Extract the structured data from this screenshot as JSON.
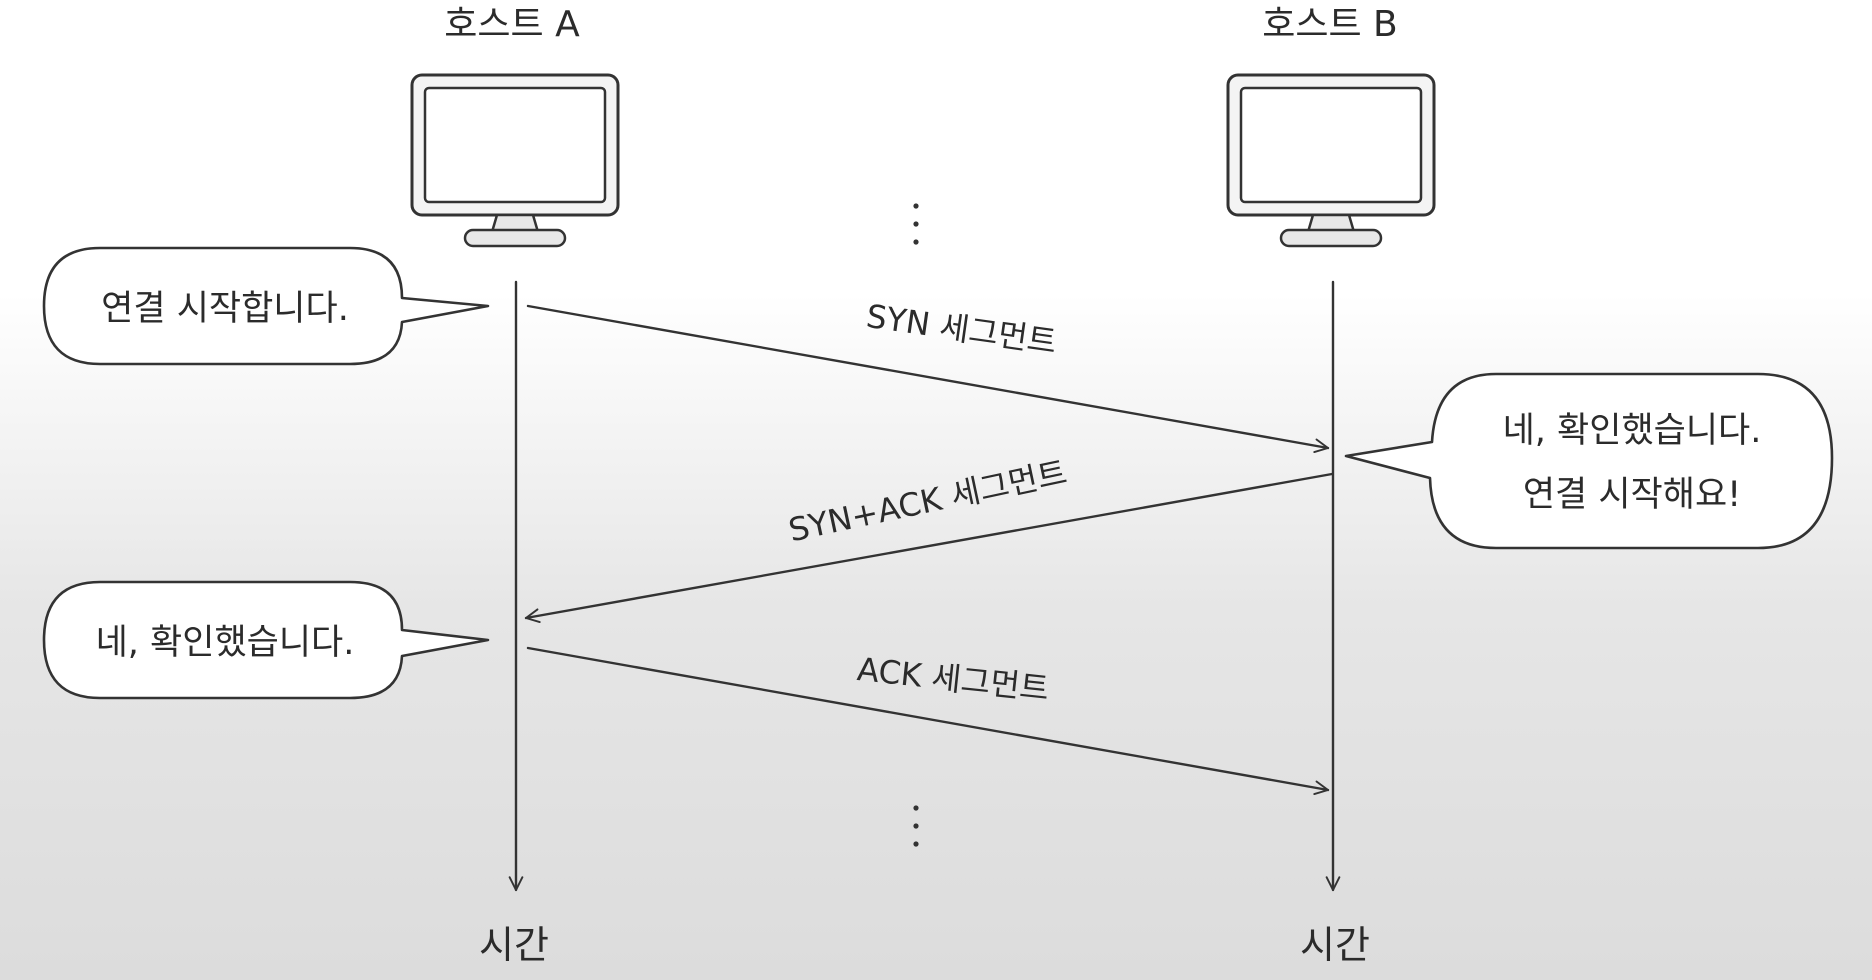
{
  "hosts": {
    "a": {
      "label": "호스트 A",
      "time_label": "시간"
    },
    "b": {
      "label": "호스트 B",
      "time_label": "시간"
    }
  },
  "segments": {
    "syn": "SYN 세그먼트",
    "syn_ack": "SYN+ACK 세그먼트",
    "ack": "ACK 세그먼트"
  },
  "bubbles": {
    "a_start": "연결 시작합니다.",
    "b_confirm_line1": "네, 확인했습니다.",
    "b_confirm_line2": "연결 시작해요!",
    "a_confirm": "네, 확인했습니다."
  },
  "continuation": {
    "top": "⋮",
    "bottom": "⋮"
  }
}
